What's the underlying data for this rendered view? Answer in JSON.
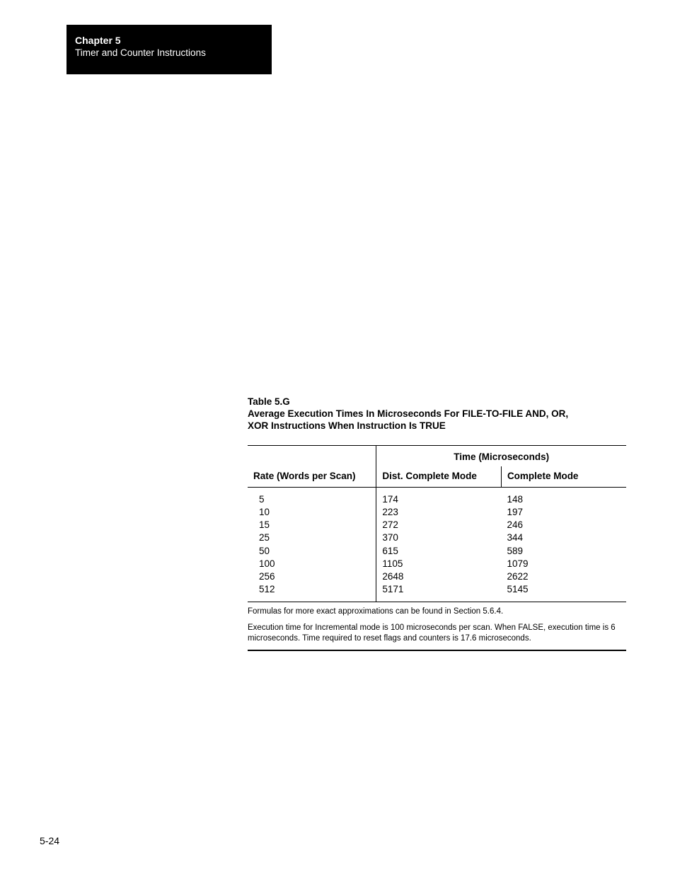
{
  "header": {
    "chapter": "Chapter 5",
    "subtitle": "Timer and Counter Instructions"
  },
  "table": {
    "label": "Table 5.G",
    "title_line1": "Average Execution Times In Microseconds For FILE-TO-FILE AND, OR,",
    "title_line2": "XOR Instructions When Instruction Is TRUE",
    "span_header": "Time (Microseconds)",
    "col_rate": "Rate (Words per Scan)",
    "col_dist": "Dist. Complete Mode",
    "col_comp": "Complete Mode",
    "rates": [
      "5",
      "10",
      "15",
      "25",
      "50",
      "100",
      "256",
      "512"
    ],
    "dist": [
      "174",
      "223",
      "272",
      "370",
      "615",
      "1105",
      "2648",
      "5171"
    ],
    "comp": [
      "148",
      "197",
      "246",
      "344",
      "589",
      "1079",
      "2622",
      "5145"
    ]
  },
  "footnotes": {
    "f1": "Formulas for more exact approximations can be found in Section 5.6.4.",
    "f2": "Execution time for Incremental mode is 100 microseconds per scan.  When FALSE, execution time is 6 microseconds.  Time required to reset flags and counters is 17.6 microseconds."
  },
  "page_number": "5-24"
}
